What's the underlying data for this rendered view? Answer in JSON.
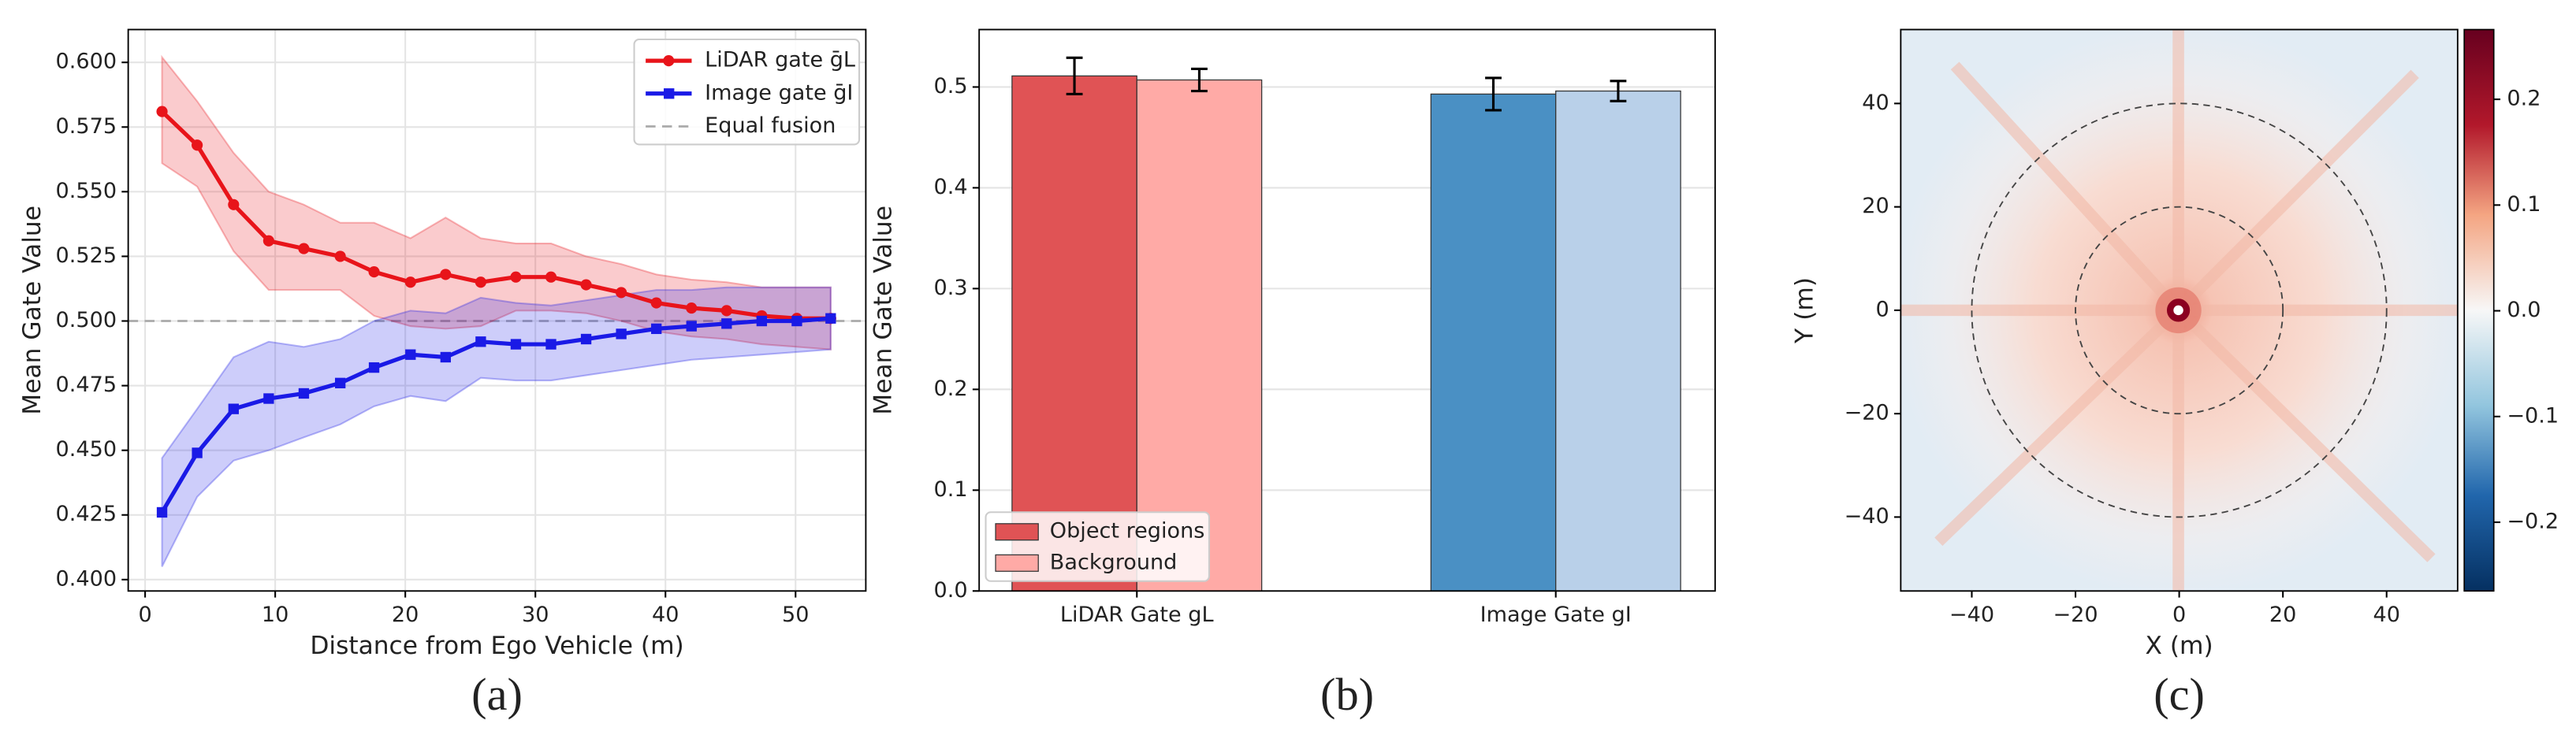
{
  "chart_data": [
    {
      "type": "line",
      "caption": "(a)",
      "xlabel": "Distance from Ego Vehicle (m)",
      "ylabel": "Mean Gate Value",
      "x": [
        1.3,
        4.0,
        6.8,
        9.5,
        12.2,
        15.0,
        17.6,
        20.4,
        23.1,
        25.8,
        28.5,
        31.2,
        33.9,
        36.6,
        39.3,
        42.0,
        44.7,
        47.4,
        50.1,
        52.7
      ],
      "xlim": [
        -1.3,
        55.4
      ],
      "ylim": [
        0.3956,
        0.6127
      ],
      "xticks": [
        0,
        10,
        20,
        30,
        40,
        50
      ],
      "yticks": [
        {
          "value": 0.4,
          "label": "0.400"
        },
        {
          "value": 0.425,
          "label": "0.425"
        },
        {
          "value": 0.45,
          "label": "0.450"
        },
        {
          "value": 0.475,
          "label": "0.475"
        },
        {
          "value": 0.5,
          "label": "0.500"
        },
        {
          "value": 0.525,
          "label": "0.525"
        },
        {
          "value": 0.55,
          "label": "0.550"
        },
        {
          "value": 0.575,
          "label": "0.575"
        },
        {
          "value": 0.6,
          "label": "0.600"
        }
      ],
      "grid": true,
      "legend": "upper right",
      "series": [
        {
          "name": "LiDAR gate ḡL",
          "color": "#e8141a",
          "marker": "circle",
          "values": [
            0.581,
            0.568,
            0.545,
            0.531,
            0.528,
            0.525,
            0.519,
            0.515,
            0.518,
            0.515,
            0.517,
            0.517,
            0.514,
            0.511,
            0.507,
            0.505,
            0.504,
            0.502,
            0.501,
            0.501
          ],
          "upper": [
            0.602,
            0.585,
            0.565,
            0.55,
            0.545,
            0.538,
            0.538,
            0.532,
            0.54,
            0.532,
            0.53,
            0.53,
            0.525,
            0.522,
            0.518,
            0.516,
            0.515,
            0.513,
            0.513,
            0.513
          ],
          "lower": [
            0.561,
            0.552,
            0.527,
            0.512,
            0.512,
            0.512,
            0.502,
            0.498,
            0.497,
            0.498,
            0.504,
            0.504,
            0.503,
            0.5,
            0.496,
            0.494,
            0.493,
            0.491,
            0.49,
            0.489
          ]
        },
        {
          "name": "Image gate ḡI",
          "color": "#1a1ae6",
          "marker": "square",
          "values": [
            0.426,
            0.449,
            0.466,
            0.47,
            0.472,
            0.476,
            0.482,
            0.487,
            0.486,
            0.492,
            0.491,
            0.491,
            0.493,
            0.495,
            0.497,
            0.498,
            0.499,
            0.5,
            0.5,
            0.501
          ],
          "upper": [
            0.447,
            0.466,
            0.486,
            0.492,
            0.49,
            0.493,
            0.5,
            0.504,
            0.503,
            0.509,
            0.507,
            0.506,
            0.508,
            0.51,
            0.512,
            0.512,
            0.513,
            0.513,
            0.513,
            0.513
          ],
          "lower": [
            0.405,
            0.432,
            0.446,
            0.45,
            0.455,
            0.46,
            0.467,
            0.471,
            0.469,
            0.478,
            0.477,
            0.477,
            0.479,
            0.481,
            0.483,
            0.485,
            0.486,
            0.487,
            0.488,
            0.489
          ]
        }
      ],
      "reference_line": {
        "value": 0.5,
        "label": "Equal fusion",
        "color": "#aaaaaa"
      }
    },
    {
      "type": "bar",
      "caption": "(b)",
      "ylabel": "Mean Gate Value",
      "categories": [
        "LiDAR Gate gL",
        "Image Gate gI"
      ],
      "ylim": [
        0,
        0.557
      ],
      "yticks": [
        {
          "value": 0,
          "label": "0.0"
        },
        0.1,
        0.2,
        0.3,
        0.4,
        0.5
      ],
      "grid": true,
      "legend": "lower left",
      "series": [
        {
          "name": "Object regions",
          "colors": [
            "#e05355",
            "#4a90c4"
          ],
          "values": [
            0.511,
            0.493
          ],
          "errors": [
            0.018,
            0.016
          ]
        },
        {
          "name": "Background",
          "colors": [
            "#ffaaa6",
            "#b9d0e9"
          ],
          "values": [
            0.507,
            0.496
          ],
          "errors": [
            0.011,
            0.01
          ]
        }
      ]
    },
    {
      "type": "heatmap",
      "caption": "(c)",
      "xlabel": "X (m)",
      "ylabel": "Y (m)",
      "xlim": [
        -53.7,
        53.7
      ],
      "ylim": [
        -54.3,
        54.3
      ],
      "xticks": [
        {
          "value": -40,
          "label": "−40"
        },
        {
          "value": -20,
          "label": "−20"
        },
        0,
        20,
        40
      ],
      "yticks": [
        {
          "value": -40,
          "label": "−40"
        },
        {
          "value": -20,
          "label": "−20"
        },
        0,
        20,
        40
      ],
      "rings": [
        20,
        40
      ],
      "colorbar": {
        "clim": [
          -0.265,
          0.266
        ],
        "colormap": "RdBu_r",
        "ticks": [
          {
            "value": -0.2,
            "label": "−0.2"
          },
          {
            "value": -0.1,
            "label": "−0.1"
          },
          {
            "value": 0,
            "label": "0.0"
          },
          0.1,
          0.2
        ]
      }
    }
  ]
}
